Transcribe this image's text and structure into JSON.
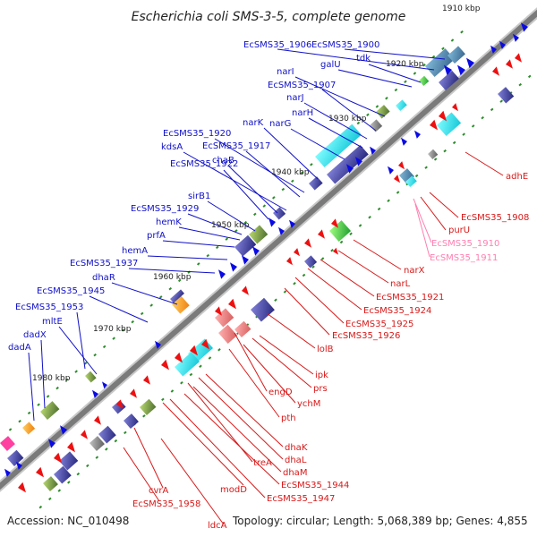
{
  "title": "Escherichia coli SMS-3-5, complete genome",
  "footer": {
    "accession": "Accession: NC_010498",
    "summary": "Topology: circular; Length: 5,068,389 bp; Genes: 4,855"
  },
  "colors": {
    "forward_label": "#1010c8",
    "reverse_label": "#d81818",
    "pink_label": "#ff7fb0",
    "backbone": "#7a7a7a",
    "tick": "#2c8c2c"
  },
  "ruler": [
    "1910 kbp",
    "1920 kbp",
    "1930 kbp",
    "1940 kbp",
    "1950 kbp",
    "1960 kbp",
    "1970 kbp",
    "1980 kbp"
  ],
  "labels_forward": [
    "EcSMS35_1906",
    "EcSMS35_1900",
    "galU",
    "tdk",
    "narI",
    "EcSMS35_1907",
    "narJ",
    "narH",
    "narK",
    "narG",
    "EcSMS35_1920",
    "kdsA",
    "EcSMS35_1917",
    "chaB",
    "EcSMS35_1922",
    "sirB1",
    "EcSMS35_1929",
    "hemK",
    "prfA",
    "hemA",
    "EcSMS35_1937",
    "dhaR",
    "EcSMS35_1945",
    "EcSMS35_1953",
    "mltE",
    "dadX",
    "dadA"
  ],
  "labels_reverse": [
    "adhE",
    "EcSMS35_1908",
    "purU",
    "narX",
    "narL",
    "EcSMS35_1921",
    "EcSMS35_1924",
    "EcSMS35_1925",
    "EcSMS35_1926",
    "lolB",
    "ipk",
    "prs",
    "ychM",
    "engD",
    "pth",
    "dhaK",
    "dhaL",
    "treA",
    "dhaM",
    "EcSMS35_1944",
    "modD",
    "EcSMS35_1947",
    "cvrA",
    "EcSMS35_1958",
    "ldcA"
  ],
  "labels_pink": [
    "EcSMS35_1910",
    "EcSMS35_1911"
  ]
}
